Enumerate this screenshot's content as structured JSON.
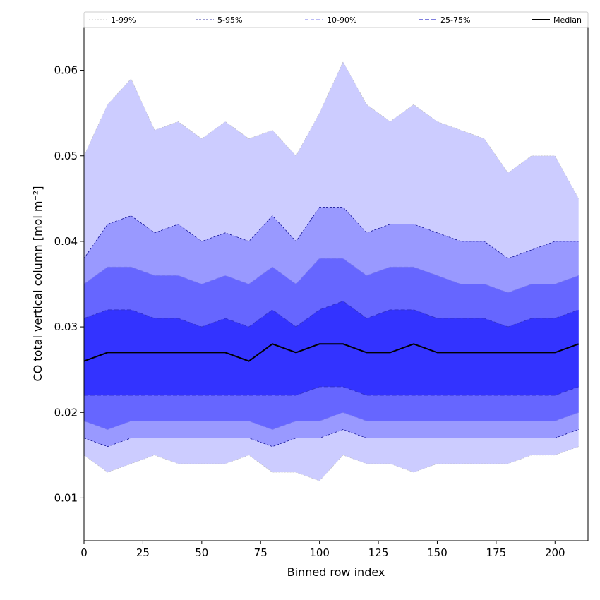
{
  "chart_data": {
    "type": "area",
    "xlabel": "Binned row index",
    "ylabel": "CO total vertical column [mol m⁻²]",
    "xlim": [
      0,
      214
    ],
    "ylim": [
      0.005,
      0.065
    ],
    "xticks": [
      0,
      25,
      50,
      75,
      100,
      125,
      150,
      175,
      200
    ],
    "yticks": [
      0.01,
      0.02,
      0.03,
      0.04,
      0.05,
      0.06
    ],
    "ytick_labels": [
      "0.01",
      "0.02",
      "0.03",
      "0.04",
      "0.05",
      "0.06"
    ],
    "grid": false,
    "legend_position": "top",
    "colors": {
      "band_1_99": "#ccccff",
      "band_5_95": "#9999ff",
      "band_10_90": "#6666ff",
      "band_25_75": "#3333ff",
      "line_1_99": "#bbbbbb",
      "line_5_95": "#00008b",
      "line_10_90": "#7777ee",
      "line_25_75": "#3333cc",
      "median": "#000000"
    },
    "legend": [
      {
        "key": "p1_99",
        "label": "1-99%"
      },
      {
        "key": "p5_95",
        "label": "5-95%"
      },
      {
        "key": "p10_90",
        "label": "10-90%"
      },
      {
        "key": "p25_75",
        "label": "25-75%"
      },
      {
        "key": "median",
        "label": "Median"
      }
    ],
    "x_step": 10,
    "series": [
      {
        "key": "p99",
        "values": [
          0.05,
          0.056,
          0.059,
          0.053,
          0.054,
          0.052,
          0.054,
          0.052,
          0.053,
          0.05,
          0.055,
          0.061,
          0.056,
          0.054,
          0.056,
          0.054,
          0.053,
          0.052,
          0.048,
          0.05,
          0.05,
          0.045
        ]
      },
      {
        "key": "p95",
        "values": [
          0.038,
          0.042,
          0.043,
          0.041,
          0.042,
          0.04,
          0.041,
          0.04,
          0.043,
          0.04,
          0.044,
          0.044,
          0.041,
          0.042,
          0.042,
          0.041,
          0.04,
          0.04,
          0.038,
          0.039,
          0.04,
          0.04
        ]
      },
      {
        "key": "p90",
        "values": [
          0.035,
          0.037,
          0.037,
          0.036,
          0.036,
          0.035,
          0.036,
          0.035,
          0.037,
          0.035,
          0.038,
          0.038,
          0.036,
          0.037,
          0.037,
          0.036,
          0.035,
          0.035,
          0.034,
          0.035,
          0.035,
          0.036
        ]
      },
      {
        "key": "p75",
        "values": [
          0.031,
          0.032,
          0.032,
          0.031,
          0.031,
          0.03,
          0.031,
          0.03,
          0.032,
          0.03,
          0.032,
          0.033,
          0.031,
          0.032,
          0.032,
          0.031,
          0.031,
          0.031,
          0.03,
          0.031,
          0.031,
          0.032
        ]
      },
      {
        "key": "median",
        "values": [
          0.026,
          0.027,
          0.027,
          0.027,
          0.027,
          0.027,
          0.027,
          0.026,
          0.028,
          0.027,
          0.028,
          0.028,
          0.027,
          0.027,
          0.028,
          0.027,
          0.027,
          0.027,
          0.027,
          0.027,
          0.027,
          0.028
        ]
      },
      {
        "key": "p25",
        "values": [
          0.022,
          0.022,
          0.022,
          0.022,
          0.022,
          0.022,
          0.022,
          0.022,
          0.022,
          0.022,
          0.023,
          0.023,
          0.022,
          0.022,
          0.022,
          0.022,
          0.022,
          0.022,
          0.022,
          0.022,
          0.022,
          0.023
        ]
      },
      {
        "key": "p10",
        "values": [
          0.019,
          0.018,
          0.019,
          0.019,
          0.019,
          0.019,
          0.019,
          0.019,
          0.018,
          0.019,
          0.019,
          0.02,
          0.019,
          0.019,
          0.019,
          0.019,
          0.019,
          0.019,
          0.019,
          0.019,
          0.019,
          0.02
        ]
      },
      {
        "key": "p5",
        "values": [
          0.017,
          0.016,
          0.017,
          0.017,
          0.017,
          0.017,
          0.017,
          0.017,
          0.016,
          0.017,
          0.017,
          0.018,
          0.017,
          0.017,
          0.017,
          0.017,
          0.017,
          0.017,
          0.017,
          0.017,
          0.017,
          0.018
        ]
      },
      {
        "key": "p1",
        "values": [
          0.015,
          0.013,
          0.014,
          0.015,
          0.014,
          0.014,
          0.014,
          0.015,
          0.013,
          0.013,
          0.012,
          0.015,
          0.014,
          0.014,
          0.013,
          0.014,
          0.014,
          0.014,
          0.014,
          0.015,
          0.015,
          0.016
        ]
      }
    ]
  }
}
